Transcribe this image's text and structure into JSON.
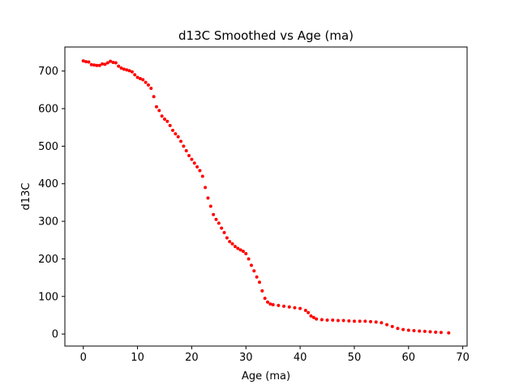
{
  "chart_data": {
    "type": "scatter",
    "title": "d13C Smoothed vs Age (ma)",
    "xlabel": "Age (ma)",
    "ylabel": "d13C",
    "xlim": [
      -3.4,
      70.8
    ],
    "ylim": [
      -32,
      764
    ],
    "xticks": [
      0,
      10,
      20,
      30,
      40,
      50,
      60,
      70
    ],
    "yticks": [
      0,
      100,
      200,
      300,
      400,
      500,
      600,
      700
    ],
    "grid": false,
    "legend": "none",
    "marker_color": "#ff0000",
    "series": [
      {
        "x": [
          0,
          0.5,
          1,
          1.5,
          2,
          2.5,
          3,
          3.5,
          4,
          4.5,
          5,
          5.5,
          6,
          6.5,
          7,
          7.5,
          8,
          8.5,
          9,
          9.5,
          10,
          10.5,
          11,
          11.5,
          12,
          12.5,
          13,
          13.5,
          14,
          14.5,
          15,
          15.5,
          16,
          16.5,
          17,
          17.5,
          18,
          18.5,
          19,
          19.5,
          20,
          20.5,
          21,
          21.5,
          22,
          22.5,
          23,
          23.5,
          24,
          24.5,
          25,
          25.5,
          26,
          26.5,
          27,
          27.5,
          28,
          28.5,
          29,
          29.5,
          30,
          30.5,
          31,
          31.5,
          32,
          32.5,
          33,
          33.5,
          34,
          34.5,
          35,
          36,
          37,
          38,
          39,
          40,
          41,
          41.5,
          42,
          42.5,
          43,
          44,
          45,
          46,
          47,
          48,
          49,
          50,
          51,
          52,
          53,
          54,
          55,
          56,
          57,
          58,
          59,
          60,
          61,
          62,
          63,
          64,
          65,
          66,
          67.4
        ],
        "y": [
          727,
          725,
          724,
          717,
          716,
          715,
          715,
          719,
          718,
          722,
          726,
          723,
          722,
          713,
          708,
          705,
          703,
          701,
          698,
          690,
          683,
          680,
          677,
          670,
          663,
          654,
          632,
          605,
          595,
          580,
          572,
          566,
          555,
          542,
          533,
          525,
          513,
          500,
          488,
          475,
          465,
          455,
          445,
          435,
          420,
          390,
          362,
          340,
          318,
          305,
          295,
          282,
          270,
          256,
          246,
          240,
          233,
          228,
          224,
          220,
          214,
          200,
          183,
          168,
          152,
          138,
          115,
          95,
          85,
          80,
          78,
          76,
          74,
          72,
          70,
          68,
          63,
          57,
          48,
          44,
          40,
          38,
          37,
          37,
          36,
          36,
          35,
          34,
          34,
          34,
          33,
          32,
          30,
          25,
          20,
          15,
          12,
          10,
          9,
          8,
          7,
          6,
          5,
          4,
          3
        ]
      }
    ]
  }
}
